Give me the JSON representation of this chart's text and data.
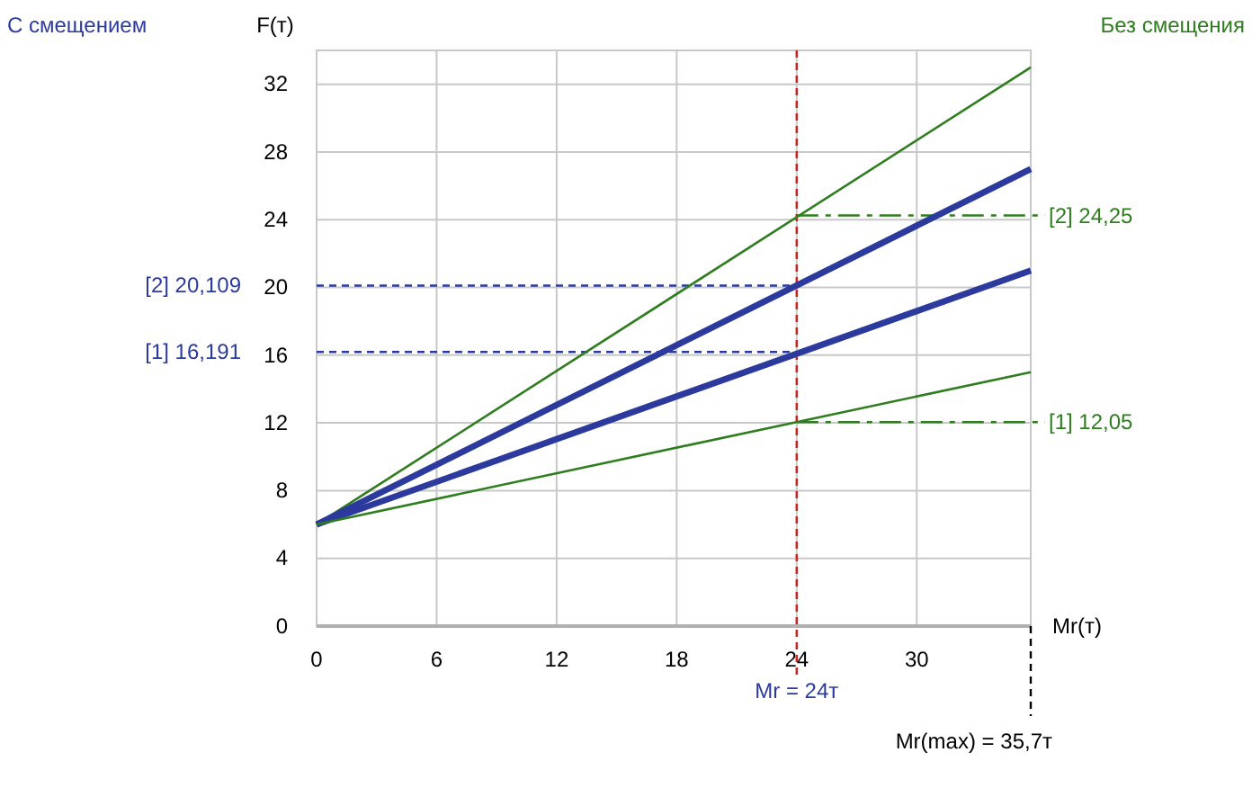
{
  "chart_data": {
    "type": "line",
    "ylabel": "F(т)",
    "xlabel": "Mr(т)",
    "x": [
      0,
      35.7
    ],
    "xlim": [
      0,
      35.7
    ],
    "ylim": [
      0,
      34
    ],
    "xticks": [
      0,
      6,
      12,
      18,
      24,
      30
    ],
    "yticks": [
      0,
      4,
      8,
      12,
      16,
      20,
      24,
      28,
      32
    ],
    "grid": true,
    "series": [
      {
        "color": "#2e7d1e",
        "values": [
          6,
          33
        ]
      },
      {
        "color": "#2b3a9c",
        "values": [
          6,
          27
        ]
      },
      {
        "color": "#2b3a9c",
        "values": [
          6,
          21
        ]
      },
      {
        "color": "#2e7d1e",
        "values": [
          6,
          15
        ]
      }
    ],
    "ref_lines": [
      {
        "axis": "x",
        "value": 24,
        "label": "Mr = 24т",
        "color": "#d02020",
        "line_style": "dashed"
      },
      {
        "axis": "x",
        "value": 35.7,
        "label": "Mr(max) = 35,7т",
        "color": "#000000",
        "line_style": "dashed"
      },
      {
        "axis": "y",
        "value": 20.109,
        "label": "[2] 20,109",
        "color": "#2b3a9c",
        "line_style": "dashed"
      },
      {
        "axis": "y",
        "value": 16.191,
        "label": "[1] 16,191",
        "color": "#2b3a9c",
        "line_style": "dashed"
      },
      {
        "axis": "y",
        "value": 24.25,
        "label": "[2] 24,25",
        "color": "#2e7d1e",
        "line_style": "dashdot"
      },
      {
        "axis": "y",
        "value": 12.05,
        "label": "[1] 12,05",
        "color": "#2e7d1e",
        "line_style": "dashdot"
      }
    ],
    "annotations": [
      "С смещением",
      "Без смещения"
    ]
  }
}
